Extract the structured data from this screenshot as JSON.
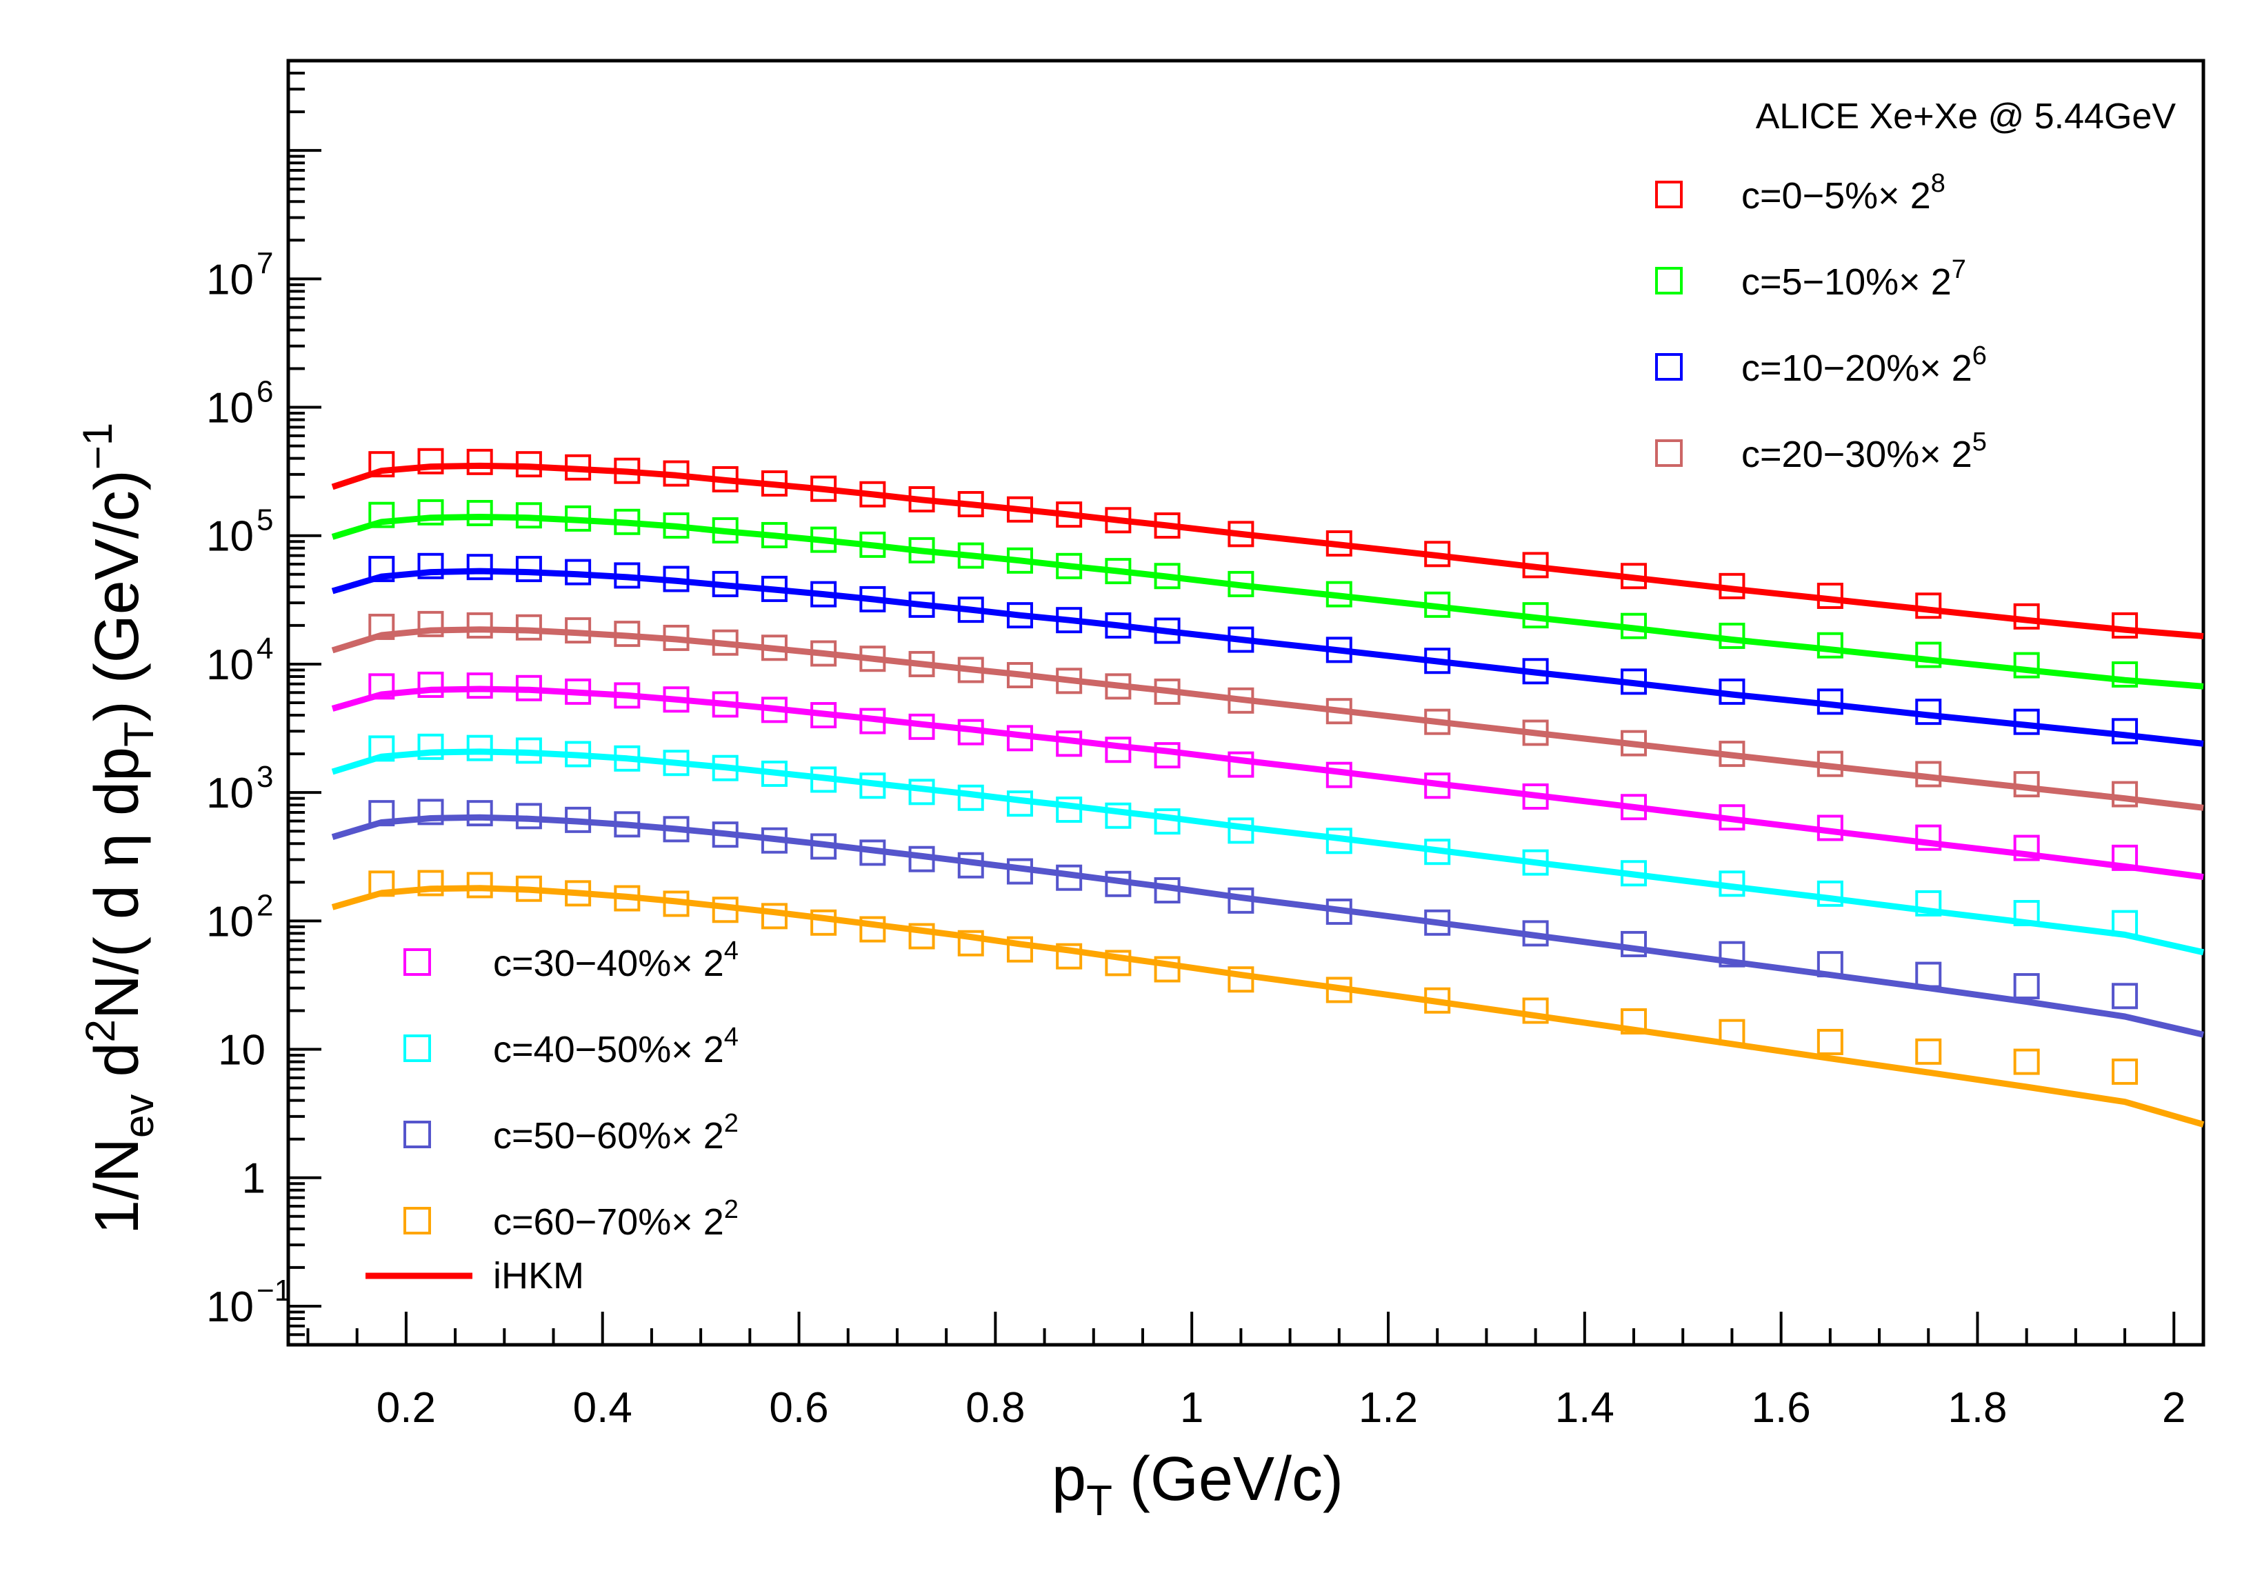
{
  "chart_data": {
    "type": "scatter",
    "title": "ALICE Xe+Xe @ 5.44GeV",
    "xlabel": {
      "main": "p",
      "sub": "T",
      "unit": " (GeV/c)"
    },
    "ylabel": {
      "p1": "1/N",
      "sub1": "ev",
      "p2": " d",
      "sup1": "2",
      "p3": "N/( d ",
      "eta": "η",
      "p4": " dp",
      "sub2": "T",
      "p5": ") (GeV/c)",
      "sup2": "−1"
    },
    "xlim": [
      0.08,
      2.03
    ],
    "ylim": [
      0.05,
      500000000
    ],
    "yscale": "log",
    "x_ticks": [
      {
        "v": 0.2,
        "label": "0.2"
      },
      {
        "v": 0.4,
        "label": "0.4"
      },
      {
        "v": 0.6,
        "label": "0.6"
      },
      {
        "v": 0.8,
        "label": "0.8"
      },
      {
        "v": 1.0,
        "label": "1"
      },
      {
        "v": 1.2,
        "label": "1.2"
      },
      {
        "v": 1.4,
        "label": "1.4"
      },
      {
        "v": 1.6,
        "label": "1.6"
      },
      {
        "v": 1.8,
        "label": "1.8"
      },
      {
        "v": 2.0,
        "label": "2"
      }
    ],
    "y_ticks": [
      {
        "v": 0.1,
        "base": "10",
        "sup": "−1"
      },
      {
        "v": 1,
        "base": "1",
        "sup": ""
      },
      {
        "v": 10,
        "base": "10",
        "sup": ""
      },
      {
        "v": 100,
        "base": "10",
        "sup": "2"
      },
      {
        "v": 1000,
        "base": "10",
        "sup": "3"
      },
      {
        "v": 10000,
        "base": "10",
        "sup": "4"
      },
      {
        "v": 100000,
        "base": "10",
        "sup": "5"
      },
      {
        "v": 1000000,
        "base": "10",
        "sup": "6"
      },
      {
        "v": 10000000,
        "base": "10",
        "sup": "7"
      }
    ],
    "data_x": [
      0.175,
      0.225,
      0.275,
      0.325,
      0.375,
      0.425,
      0.475,
      0.525,
      0.575,
      0.625,
      0.675,
      0.725,
      0.775,
      0.825,
      0.875,
      0.925,
      0.975,
      1.05,
      1.15,
      1.25,
      1.35,
      1.45,
      1.55,
      1.65,
      1.75,
      1.85,
      1.95
    ],
    "model_x": [
      0.125,
      0.175,
      0.225,
      0.275,
      0.325,
      0.375,
      0.425,
      0.475,
      0.525,
      0.575,
      0.625,
      0.675,
      0.725,
      0.775,
      0.825,
      0.875,
      0.925,
      0.975,
      1.05,
      1.15,
      1.25,
      1.35,
      1.45,
      1.55,
      1.65,
      1.75,
      1.85,
      1.95,
      2.03
    ],
    "series": [
      {
        "name": "c=0−5%× 2",
        "exp": "8",
        "color": "#ff0000",
        "data": [
          360000,
          380000,
          375000,
          360000,
          340000,
          320000,
          305000,
          275000,
          255000,
          232000,
          210000,
          192000,
          176000,
          160000,
          146000,
          132000,
          120000,
          103000,
          87000,
          72000,
          59000,
          48500,
          40500,
          34000,
          28500,
          23500,
          20000
        ],
        "model": [
          240000,
          320000,
          345000,
          350000,
          345000,
          330000,
          315000,
          295000,
          270000,
          250000,
          230000,
          210000,
          190000,
          175000,
          160000,
          146000,
          132000,
          120000,
          103000,
          85000,
          70000,
          57000,
          47000,
          38500,
          32000,
          26500,
          22000,
          18500,
          16500
        ]
      },
      {
        "name": "c=5−10%× 2",
        "exp": "7",
        "color": "#00ff00",
        "data": [
          145000,
          152000,
          150000,
          144000,
          136000,
          128000,
          120000,
          110000,
          101000,
          93000,
          85000,
          77000,
          70000,
          64000,
          58000,
          53000,
          48500,
          42000,
          35000,
          29000,
          24000,
          19800,
          16600,
          14000,
          11800,
          9800,
          8300
        ],
        "model": [
          98000,
          128000,
          138000,
          140000,
          138000,
          132000,
          126000,
          118000,
          108000,
          100000,
          92000,
          84000,
          76000,
          70000,
          64000,
          58000,
          53000,
          48000,
          41000,
          34000,
          28000,
          23000,
          19000,
          15500,
          13000,
          10800,
          9000,
          7500,
          6700
        ]
      },
      {
        "name": "c=10−20%× 2",
        "exp": "6",
        "color": "#0000ff",
        "data": [
          55000,
          58000,
          57000,
          55000,
          52000,
          49000,
          46000,
          42000,
          38500,
          35000,
          32000,
          29000,
          26500,
          24000,
          22000,
          20000,
          18200,
          15500,
          12900,
          10600,
          8800,
          7300,
          6100,
          5100,
          4250,
          3550,
          3000
        ],
        "model": [
          37000,
          48000,
          52000,
          53000,
          52000,
          50000,
          47500,
          44500,
          41000,
          38000,
          35000,
          32000,
          29000,
          26500,
          24000,
          22000,
          20000,
          18000,
          15500,
          12800,
          10500,
          8600,
          7100,
          5800,
          4850,
          4000,
          3350,
          2800,
          2400
        ]
      },
      {
        "name": "c=20−30%× 2",
        "exp": "5",
        "color": "#cc6666",
        "data": [
          19500,
          20500,
          20000,
          19300,
          18300,
          17200,
          16000,
          14700,
          13400,
          12100,
          11000,
          10000,
          9000,
          8200,
          7400,
          6700,
          6100,
          5200,
          4300,
          3550,
          2920,
          2420,
          2000,
          1670,
          1390,
          1160,
          970
        ],
        "model": [
          12800,
          16800,
          18300,
          18600,
          18300,
          17500,
          16600,
          15600,
          14400,
          13200,
          12100,
          11000,
          10000,
          9100,
          8300,
          7500,
          6800,
          6200,
          5300,
          4350,
          3550,
          2900,
          2380,
          1950,
          1600,
          1320,
          1090,
          900,
          760
        ]
      },
      {
        "name": "c=30−40%× 2",
        "exp": "4",
        "color": "#ff00ff",
        "data": [
          6700,
          6900,
          6800,
          6500,
          6100,
          5700,
          5300,
          4850,
          4400,
          4000,
          3600,
          3250,
          2950,
          2650,
          2400,
          2150,
          1950,
          1650,
          1370,
          1130,
          930,
          770,
          640,
          530,
          445,
          370,
          310
        ],
        "model": [
          4500,
          5800,
          6300,
          6400,
          6300,
          6000,
          5700,
          5300,
          4900,
          4500,
          4100,
          3750,
          3400,
          3100,
          2800,
          2550,
          2300,
          2100,
          1780,
          1450,
          1170,
          950,
          770,
          620,
          500,
          405,
          330,
          265,
          220
        ]
      },
      {
        "name": "c=40−50%× 2",
        "exp": "4",
        "color": "#00ffff",
        "data": [
          2200,
          2270,
          2220,
          2120,
          1990,
          1840,
          1700,
          1550,
          1400,
          1260,
          1130,
          1010,
          910,
          820,
          735,
          660,
          595,
          505,
          420,
          345,
          285,
          235,
          195,
          163,
          137,
          115,
          96
        ],
        "model": [
          1450,
          1900,
          2050,
          2080,
          2040,
          1950,
          1840,
          1700,
          1570,
          1430,
          1300,
          1180,
          1070,
          970,
          870,
          790,
          710,
          640,
          540,
          440,
          355,
          285,
          230,
          185,
          150,
          120,
          97,
          78,
          57
        ]
      },
      {
        "name": "c=50−60%× 2",
        "exp": "2",
        "color": "#5555cc",
        "data": [
          690,
          705,
          690,
          655,
          612,
          565,
          518,
          470,
          423,
          380,
          340,
          303,
          271,
          243,
          217,
          194,
          173,
          144,
          118,
          97,
          80,
          66,
          55,
          46,
          38,
          31,
          26
        ],
        "model": [
          450,
          585,
          630,
          640,
          625,
          595,
          560,
          520,
          478,
          435,
          395,
          355,
          320,
          287,
          257,
          230,
          205,
          183,
          152,
          122,
          97,
          77,
          61,
          48,
          38,
          30,
          23.5,
          18,
          13
        ]
      },
      {
        "name": "c=60−70%× 2",
        "exp": "2",
        "color": "#ffa500",
        "data": [
          195,
          197,
          190,
          178,
          164,
          150,
          136,
          122,
          109,
          97,
          86,
          76,
          67,
          60,
          53,
          47,
          42,
          35,
          29,
          24,
          20,
          16.5,
          13.6,
          11.4,
          9.6,
          8.0,
          6.7
        ],
        "model": [
          128,
          165,
          178,
          180,
          175,
          165,
          154,
          142,
          129,
          117,
          105,
          94,
          84,
          75,
          66,
          59,
          52,
          46,
          38,
          30,
          23.5,
          18.3,
          14.2,
          11,
          8.5,
          6.6,
          5.1,
          3.9,
          2.6
        ]
      }
    ],
    "legend_upper": [
      0,
      1,
      2,
      3
    ],
    "legend_lower": [
      4,
      5,
      6,
      7
    ],
    "model_legend": {
      "label": "iHKM",
      "color": "#ff0000"
    }
  }
}
